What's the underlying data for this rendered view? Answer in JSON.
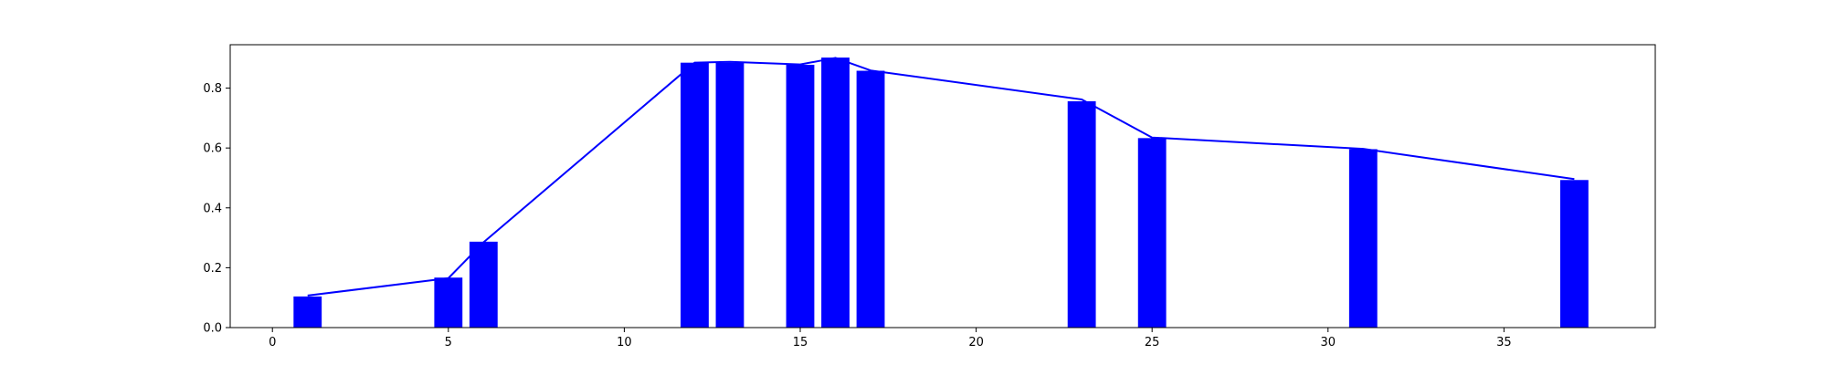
{
  "chart_data": {
    "type": "bar",
    "x": [
      1,
      5,
      6,
      12,
      13,
      15,
      16,
      17,
      23,
      25,
      31,
      37
    ],
    "bar_values": [
      0.104,
      0.167,
      0.287,
      0.885,
      0.885,
      0.878,
      0.902,
      0.858,
      0.756,
      0.633,
      0.596,
      0.493
    ],
    "line": {
      "x": [
        1,
        5,
        6,
        12,
        13,
        15,
        16,
        17,
        23,
        25,
        31,
        37
      ],
      "y": [
        0.107,
        0.165,
        0.285,
        0.885,
        0.888,
        0.879,
        0.901,
        0.859,
        0.762,
        0.635,
        0.597,
        0.496
      ]
    },
    "xlim": [
      -1.2,
      39.3
    ],
    "ylim": [
      0,
      0.945
    ],
    "xticks": [
      0,
      5,
      10,
      15,
      20,
      25,
      30,
      35
    ],
    "yticks": [
      0.0,
      0.2,
      0.4,
      0.6,
      0.8
    ],
    "ytick_labels": [
      "0.0",
      "0.2",
      "0.4",
      "0.6",
      "0.8"
    ],
    "bar_color": "#0000ff",
    "line_color": "#0000ff",
    "title": "",
    "xlabel": "",
    "ylabel": "",
    "grid": false,
    "legend": "none"
  }
}
